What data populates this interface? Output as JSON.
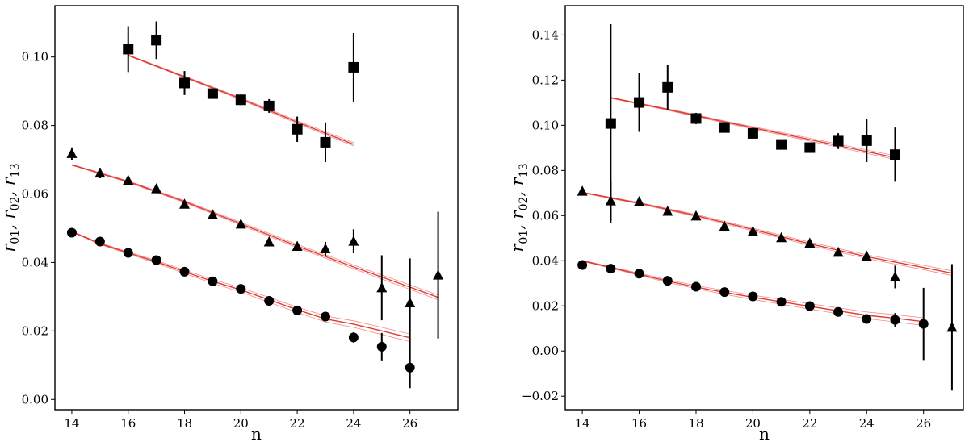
{
  "chart_data": [
    {
      "type": "scatter",
      "title": "",
      "xlabel": "n",
      "ylabel_parts": [
        "r",
        "01",
        ", ",
        "r",
        "02",
        ", ",
        "r",
        "13"
      ],
      "xlim": [
        13.4,
        27.7
      ],
      "ylim": [
        -0.003,
        0.115
      ],
      "xticks": [
        14,
        16,
        18,
        20,
        22,
        24,
        26
      ],
      "xtick_labels": [
        "14",
        "16",
        "18",
        "20",
        "22",
        "24",
        "26"
      ],
      "yticks": [
        0.0,
        0.02,
        0.04,
        0.06,
        0.08,
        0.1
      ],
      "ytick_labels": [
        "0.00",
        "0.02",
        "0.04",
        "0.06",
        "0.08",
        "0.10"
      ],
      "series": [
        {
          "name": "r01",
          "marker": "circle",
          "x": [
            14,
            15,
            16,
            17,
            18,
            19,
            20,
            21,
            22,
            23,
            24,
            25,
            26
          ],
          "y": [
            0.0487,
            0.0461,
            0.0428,
            0.0407,
            0.0373,
            0.0345,
            0.0323,
            0.0288,
            0.026,
            0.0242,
            0.0181,
            0.0154,
            0.0093
          ],
          "err": [
            0.0004,
            0.0004,
            0.0004,
            0.0004,
            0.0004,
            0.0004,
            0.0004,
            0.0004,
            0.0004,
            0.0006,
            0.0015,
            0.004,
            0.006
          ]
        },
        {
          "name": "r02",
          "marker": "triangle",
          "x": [
            14,
            15,
            16,
            17,
            18,
            19,
            20,
            21,
            22,
            23,
            24,
            25,
            26,
            27
          ],
          "y": [
            0.0718,
            0.0661,
            0.064,
            0.0615,
            0.057,
            0.0539,
            0.0512,
            0.046,
            0.0447,
            0.044,
            0.0462,
            0.0326,
            0.0282,
            0.0363
          ],
          "err": [
            0.0018,
            0.0015,
            0.0008,
            0.0007,
            0.0006,
            0.0006,
            0.0006,
            0.0006,
            0.0008,
            0.002,
            0.0035,
            0.0095,
            0.013,
            0.0185
          ]
        },
        {
          "name": "r13",
          "marker": "square",
          "x": [
            16,
            17,
            18,
            19,
            20,
            21,
            22,
            23,
            24
          ],
          "y": [
            0.1023,
            0.1049,
            0.0924,
            0.0893,
            0.0875,
            0.0857,
            0.0789,
            0.0751,
            0.097
          ],
          "err": [
            0.0067,
            0.0055,
            0.0035,
            0.001,
            0.0015,
            0.002,
            0.0037,
            0.0058,
            0.01
          ]
        }
      ],
      "fit_lines": [
        {
          "name": "fit-r13",
          "x": [
            16,
            18,
            20,
            22,
            24
          ],
          "y": [
            0.1005,
            0.0942,
            0.0878,
            0.081,
            0.0745
          ]
        },
        {
          "name": "fit-r02",
          "x": [
            14,
            16,
            18,
            20,
            22,
            24,
            26,
            27
          ],
          "y": [
            0.0685,
            0.0636,
            0.0578,
            0.0513,
            0.0448,
            0.0387,
            0.0328,
            0.0298
          ]
        },
        {
          "name": "fit-r01",
          "x": [
            14,
            15,
            16,
            17,
            18,
            19,
            20,
            21,
            22,
            23,
            24,
            25,
            26
          ],
          "y": [
            0.049,
            0.0455,
            0.0428,
            0.0402,
            0.0373,
            0.0345,
            0.032,
            0.0291,
            0.0262,
            0.0235,
            0.022,
            0.02,
            0.018
          ]
        }
      ],
      "fit_color": "#e0302a",
      "marker_color": "#000000"
    },
    {
      "type": "scatter",
      "title": "",
      "xlabel": "n",
      "ylabel_parts": [
        "r",
        "01",
        ", ",
        "r",
        "02",
        ", ",
        "r",
        "13"
      ],
      "xlim": [
        13.4,
        27.4
      ],
      "ylim": [
        -0.026,
        0.153
      ],
      "xticks": [
        14,
        16,
        18,
        20,
        22,
        24,
        26
      ],
      "xtick_labels": [
        "14",
        "16",
        "18",
        "20",
        "22",
        "24",
        "26"
      ],
      "yticks": [
        -0.02,
        0.0,
        0.02,
        0.04,
        0.06,
        0.08,
        0.1,
        0.12,
        0.14
      ],
      "ytick_labels": [
        "−0.02",
        "0.00",
        "0.02",
        "0.04",
        "0.06",
        "0.08",
        "0.10",
        "0.12",
        "0.14"
      ],
      "series": [
        {
          "name": "r01",
          "marker": "circle",
          "x": [
            14,
            15,
            16,
            17,
            18,
            19,
            20,
            21,
            22,
            23,
            24,
            25,
            26
          ],
          "y": [
            0.0381,
            0.0365,
            0.0343,
            0.0311,
            0.0285,
            0.0261,
            0.0242,
            0.0218,
            0.0199,
            0.0173,
            0.0142,
            0.0138,
            0.012
          ],
          "err": [
            0.0005,
            0.0005,
            0.0005,
            0.0005,
            0.0005,
            0.0005,
            0.0005,
            0.0005,
            0.0005,
            0.0005,
            0.001,
            0.003,
            0.016
          ]
        },
        {
          "name": "r02",
          "marker": "triangle",
          "x": [
            14,
            15,
            16,
            17,
            18,
            19,
            20,
            21,
            22,
            23,
            24,
            25,
            27
          ],
          "y": [
            0.0708,
            0.0665,
            0.0662,
            0.0619,
            0.0598,
            0.0553,
            0.053,
            0.0502,
            0.0478,
            0.0437,
            0.042,
            0.0328,
            0.0105
          ],
          "err": [
            0.001,
            0.009,
            0.0008,
            0.0006,
            0.0006,
            0.0006,
            0.0006,
            0.0006,
            0.0006,
            0.0008,
            0.001,
            0.005,
            0.028
          ]
        },
        {
          "name": "r13",
          "marker": "square",
          "x": [
            15,
            16,
            17,
            18,
            19,
            20,
            21,
            22,
            23,
            24,
            25
          ],
          "y": [
            0.1008,
            0.1101,
            0.1168,
            0.103,
            0.099,
            0.0964,
            0.0915,
            0.0901,
            0.093,
            0.0932,
            0.087
          ],
          "err": [
            0.044,
            0.013,
            0.01,
            0.0025,
            0.0015,
            0.001,
            0.001,
            0.0015,
            0.0035,
            0.0095,
            0.012
          ]
        }
      ],
      "fit_lines": [
        {
          "name": "fit-r13",
          "x": [
            15,
            17,
            19,
            21,
            23,
            25
          ],
          "y": [
            0.1122,
            0.107,
            0.1015,
            0.0963,
            0.091,
            0.0857
          ]
        },
        {
          "name": "fit-r02",
          "x": [
            14,
            16,
            18,
            20,
            22,
            24,
            26,
            27
          ],
          "y": [
            0.0702,
            0.0655,
            0.06,
            0.0538,
            0.0475,
            0.0418,
            0.037,
            0.0345
          ]
        },
        {
          "name": "fit-r01",
          "x": [
            14,
            15,
            16,
            17,
            18,
            19,
            20,
            21,
            22,
            23,
            24,
            25,
            26
          ],
          "y": [
            0.04,
            0.037,
            0.034,
            0.031,
            0.0283,
            0.026,
            0.0238,
            0.0218,
            0.0198,
            0.0178,
            0.0158,
            0.0145,
            0.013
          ]
        }
      ],
      "fit_color": "#e0302a",
      "marker_color": "#000000"
    }
  ]
}
